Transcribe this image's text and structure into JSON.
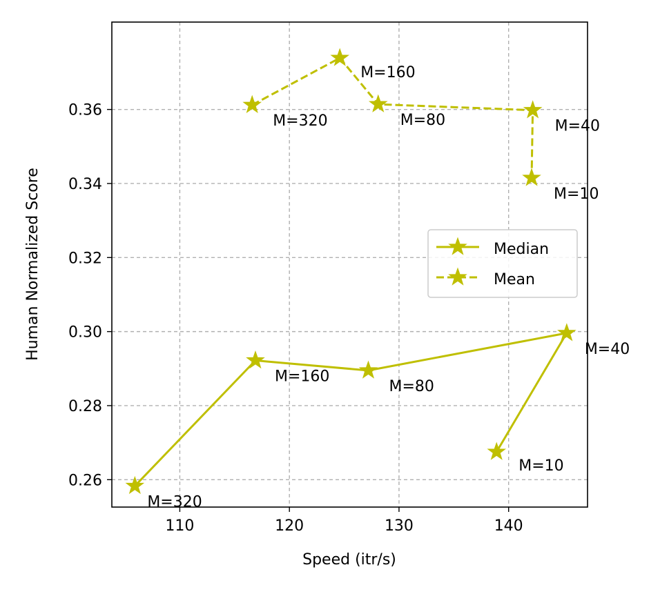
{
  "chart_data": {
    "type": "line",
    "title": "",
    "xlabel": "Speed (itr/s)",
    "ylabel": "Human Normalized Score",
    "xlim": [
      103.8,
      147.2
    ],
    "ylim": [
      0.2526,
      0.3836
    ],
    "xticks": [
      110,
      120,
      130,
      140
    ],
    "yticks": [
      0.26,
      0.28,
      0.3,
      0.32,
      0.34,
      0.36
    ],
    "xtick_labels": [
      "110",
      "120",
      "130",
      "140"
    ],
    "ytick_labels": [
      "0.26",
      "0.28",
      "0.30",
      "0.32",
      "0.34",
      "0.36"
    ],
    "grid": true,
    "legend_position": "center-right",
    "color": "#bfbf00",
    "series": [
      {
        "name": "Median",
        "linestyle": "solid",
        "marker": "star",
        "points": [
          {
            "x": 105.9,
            "y": 0.2583,
            "label": "M=320"
          },
          {
            "x": 116.9,
            "y": 0.2922,
            "label": "M=160"
          },
          {
            "x": 127.2,
            "y": 0.2895,
            "label": "M=80"
          },
          {
            "x": 145.3,
            "y": 0.2996,
            "label": "M=40"
          },
          {
            "x": 138.9,
            "y": 0.2675,
            "label": "M=10"
          }
        ]
      },
      {
        "name": "Mean",
        "linestyle": "dashed",
        "marker": "star",
        "points": [
          {
            "x": 116.6,
            "y": 0.3612,
            "label": "M=320"
          },
          {
            "x": 124.6,
            "y": 0.3739,
            "label": "M=160"
          },
          {
            "x": 128.1,
            "y": 0.3614,
            "label": "M=80"
          },
          {
            "x": 142.2,
            "y": 0.3598,
            "label": "M=40"
          },
          {
            "x": 142.1,
            "y": 0.3415,
            "label": "M=10"
          }
        ]
      }
    ]
  }
}
